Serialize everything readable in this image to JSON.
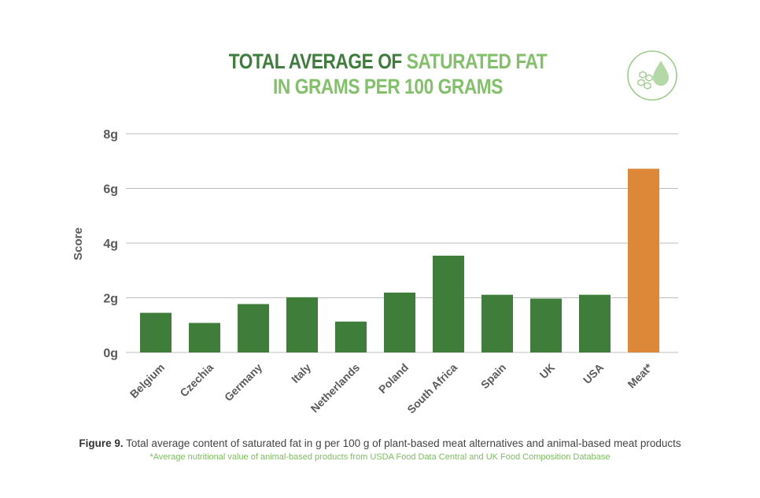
{
  "header": {
    "title_line1_dark": "TOTAL AVERAGE OF ",
    "title_line1_light": "SATURATED FAT",
    "title_line2": "IN GRAMS PER 100 GRAMS",
    "badge_icon": "fat-droplet-icon"
  },
  "colors": {
    "title_dark": "#3e7d3c",
    "title_light": "#82c06a",
    "plant_bar": "#3f7d3b",
    "meat_bar": "#dc8838",
    "grid": "#bdbdbd",
    "axis_text": "#5a5a5a"
  },
  "chart_data": {
    "type": "bar",
    "categories": [
      "Belgium",
      "Czechia",
      "Germany",
      "Italy",
      "Netherlands",
      "Poland",
      "South Africa",
      "Spain",
      "UK",
      "USA",
      "Meat*"
    ],
    "values": [
      1.45,
      1.08,
      1.77,
      2.02,
      1.13,
      2.19,
      3.54,
      2.11,
      1.97,
      2.11,
      6.72
    ],
    "highlight_category": "Meat*",
    "ylabel": "Score",
    "yticks": [
      "0g",
      "2g",
      "4g",
      "6g",
      "8g"
    ],
    "ytick_values": [
      0,
      2,
      4,
      6,
      8
    ],
    "ylim": [
      0,
      8
    ],
    "grid": true
  },
  "caption": {
    "figure_label": "Figure 9.",
    "text": " Total average content of saturated fat in g per 100 g of plant-based meat alternatives and animal-based meat products",
    "note": "*Average nutritional value of animal-based products from USDA Food Data Central and UK Food Composition Database"
  }
}
